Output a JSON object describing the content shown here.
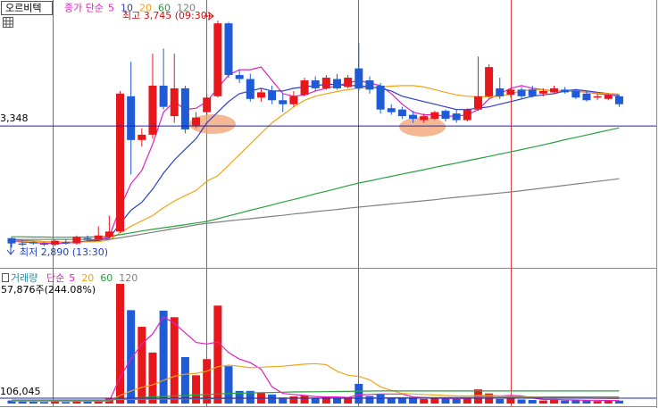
{
  "chart_data": [
    {
      "type": "candlestick",
      "stock_name": "오르비텍",
      "legend_prefix": "종가 단순",
      "high_label": "최고 3,745 (09:30)",
      "low_label": "최저 2,890 (13:30)",
      "reference_line": {
        "value": 3348,
        "label": "3,348"
      },
      "ylim": [
        2813,
        3823
      ],
      "up_color": "#e8171c",
      "down_color": "#1f5bd6",
      "open": [
        2925,
        2905,
        2910,
        2905,
        2900,
        2910,
        2905,
        2925,
        2920,
        2930,
        2950,
        3460,
        3295,
        3315,
        3500,
        3385,
        3490,
        3350,
        3400,
        3460,
        3735,
        3540,
        3525,
        3455,
        3480,
        3445,
        3430,
        3465,
        3520,
        3490,
        3525,
        3495,
        3565,
        3520,
        3500,
        3415,
        3410,
        3390,
        3370,
        3375,
        3405,
        3395,
        3370,
        3410,
        3460,
        3490,
        3465,
        3485,
        3485,
        3470,
        3475,
        3485,
        3480,
        3470,
        3455,
        3450,
        3460
      ],
      "high": [
        2930,
        2915,
        2915,
        2910,
        2920,
        2920,
        2935,
        2935,
        2970,
        3010,
        3480,
        3590,
        3340,
        3620,
        3640,
        3620,
        3500,
        3400,
        3470,
        3745,
        3740,
        3560,
        3545,
        3490,
        3500,
        3470,
        3480,
        3530,
        3535,
        3540,
        3545,
        3540,
        3660,
        3535,
        3510,
        3430,
        3420,
        3405,
        3395,
        3405,
        3410,
        3410,
        3415,
        3610,
        3580,
        3530,
        3490,
        3495,
        3500,
        3490,
        3500,
        3495,
        3485,
        3480,
        3470,
        3470,
        3465
      ],
      "low": [
        2890,
        2895,
        2900,
        2895,
        2895,
        2900,
        2900,
        2915,
        2915,
        2925,
        2945,
        3165,
        3270,
        3300,
        3410,
        3360,
        3320,
        3340,
        3390,
        3455,
        3530,
        3510,
        3440,
        3440,
        3430,
        3400,
        3420,
        3460,
        3480,
        3485,
        3485,
        3490,
        3480,
        3470,
        3395,
        3390,
        3375,
        3360,
        3360,
        3370,
        3365,
        3360,
        3365,
        3405,
        3455,
        3450,
        3455,
        3450,
        3455,
        3460,
        3470,
        3470,
        3450,
        3440,
        3445,
        3445,
        3420
      ],
      "close": [
        2905,
        2900,
        2905,
        2900,
        2915,
        2905,
        2930,
        2920,
        2935,
        2950,
        3470,
        3295,
        3315,
        3500,
        3420,
        3490,
        3335,
        3380,
        3455,
        3735,
        3540,
        3525,
        3450,
        3475,
        3445,
        3430,
        3460,
        3520,
        3490,
        3530,
        3490,
        3530,
        3490,
        3485,
        3410,
        3400,
        3385,
        3375,
        3385,
        3400,
        3375,
        3370,
        3410,
        3460,
        3570,
        3460,
        3485,
        3460,
        3460,
        3480,
        3490,
        3475,
        3455,
        3445,
        3460,
        3465,
        3430
      ],
      "series": [
        {
          "name": "5",
          "color": "#e020c0",
          "values": [
            2915,
            2910,
            2908,
            2906,
            2905,
            2906,
            2910,
            2915,
            2920,
            2930,
            3040,
            3130,
            3180,
            3280,
            3400,
            3440,
            3410,
            3415,
            3440,
            3490,
            3540,
            3560,
            3560,
            3570,
            3520,
            3470,
            3460,
            3465,
            3480,
            3490,
            3500,
            3510,
            3520,
            3510,
            3500,
            3470,
            3430,
            3400,
            3390,
            3390,
            3385,
            3385,
            3390,
            3410,
            3450,
            3470,
            3490,
            3500,
            3490,
            3485,
            3480,
            3480,
            3480,
            3475,
            3470,
            3465,
            3460
          ]
        },
        {
          "name": "10",
          "color": "#2a3fc8",
          "values": [
            2918,
            2916,
            2914,
            2912,
            2910,
            2910,
            2911,
            2913,
            2916,
            2925,
            2980,
            3030,
            3060,
            3110,
            3170,
            3220,
            3260,
            3300,
            3360,
            3400,
            3440,
            3470,
            3480,
            3490,
            3480,
            3480,
            3490,
            3495,
            3500,
            3505,
            3505,
            3500,
            3500,
            3495,
            3490,
            3480,
            3460,
            3450,
            3440,
            3430,
            3420,
            3410,
            3410,
            3415,
            3420,
            3430,
            3440,
            3450,
            3460,
            3465,
            3470,
            3480,
            3485,
            3480,
            3475,
            3470,
            3465
          ]
        },
        {
          "name": "20",
          "color": "#f0a418",
          "values": [
            2915,
            2914,
            2913,
            2912,
            2911,
            2910,
            2910,
            2911,
            2912,
            2918,
            2945,
            2970,
            2990,
            3010,
            3040,
            3065,
            3085,
            3105,
            3140,
            3160,
            3200,
            3240,
            3280,
            3320,
            3360,
            3390,
            3420,
            3445,
            3460,
            3470,
            3478,
            3485,
            3490,
            3495,
            3495,
            3498,
            3500,
            3500,
            3495,
            3485,
            3475,
            3465,
            3460,
            3458,
            3458,
            3460,
            3470,
            3480,
            3485,
            3485,
            3480,
            3480,
            3478,
            3475,
            3472,
            3470,
            3468
          ]
        },
        {
          "name": "60",
          "color": "#2aa040",
          "values": [
            2930,
            2930,
            2929,
            2929,
            2928,
            2928,
            2928,
            2929,
            2930,
            2932,
            2938,
            2945,
            2952,
            2958,
            2964,
            2970,
            2976,
            2982,
            2988,
            2998,
            3009,
            3019,
            3030,
            3040,
            3050,
            3061,
            3071,
            3081,
            3092,
            3102,
            3112,
            3123,
            3133,
            3141,
            3150,
            3158,
            3167,
            3175,
            3183,
            3192,
            3200,
            3208,
            3217,
            3225,
            3233,
            3242,
            3250,
            3259,
            3268,
            3277,
            3286,
            3296,
            3305,
            3314,
            3323,
            3332,
            3341
          ]
        },
        {
          "name": "120",
          "color": "#808080",
          "values": [
            2920,
            2920,
            2920,
            2920,
            2920,
            2920,
            2920,
            2920,
            2920,
            2920,
            2926,
            2933,
            2940,
            2947,
            2954,
            2961,
            2968,
            2975,
            2981,
            2985,
            2990,
            2994,
            2998,
            3003,
            3007,
            3011,
            3016,
            3020,
            3025,
            3029,
            3033,
            3038,
            3042,
            3046,
            3050,
            3054,
            3058,
            3062,
            3066,
            3070,
            3075,
            3079,
            3083,
            3087,
            3091,
            3095,
            3099,
            3104,
            3109,
            3114,
            3119,
            3124,
            3129,
            3134,
            3139,
            3144,
            3149
          ]
        }
      ]
    },
    {
      "type": "volume",
      "legend_title": "거래량",
      "legend_prefix": "단순",
      "current_label": "57,876주(244.08%)",
      "reference_line": {
        "value": 106045,
        "label": "106,045"
      },
      "ylim": [
        0,
        2600000
      ],
      "values": [
        60000,
        40000,
        35000,
        30000,
        45000,
        30000,
        55000,
        40000,
        70000,
        110000,
        2370000,
        1850000,
        1520000,
        1010000,
        1840000,
        1710000,
        920000,
        560000,
        880000,
        1940000,
        740000,
        250000,
        250000,
        210000,
        180000,
        120000,
        140000,
        160000,
        110000,
        130000,
        100000,
        120000,
        390000,
        150000,
        180000,
        120000,
        100000,
        110000,
        90000,
        120000,
        100000,
        90000,
        110000,
        280000,
        200000,
        90000,
        110000,
        80000,
        70000,
        60000,
        90000,
        60000,
        70000,
        60000,
        50000,
        55000,
        57876
      ],
      "series": [
        {
          "name": "5",
          "color": "#e020c0",
          "values": [
            50000,
            50000,
            50000,
            50000,
            50000,
            50000,
            50000,
            50000,
            50000,
            50000,
            520000,
            880000,
            1180000,
            1380000,
            1720000,
            1590000,
            1400000,
            1210000,
            1180000,
            1220000,
            1010000,
            880000,
            810000,
            680000,
            330000,
            200000,
            180000,
            160000,
            140000,
            130000,
            130000,
            120000,
            170000,
            180000,
            190000,
            190000,
            190000,
            130000,
            120000,
            110000,
            100000,
            100000,
            100000,
            140000,
            160000,
            150000,
            160000,
            150000,
            110000,
            80000,
            80000,
            75000,
            70000,
            65000,
            65000,
            60000,
            58000
          ]
        },
        {
          "name": "20",
          "color": "#f0a418",
          "values": [
            50000,
            50000,
            50000,
            50000,
            50000,
            50000,
            50000,
            50000,
            50000,
            50000,
            160000,
            250000,
            320000,
            370000,
            460000,
            540000,
            580000,
            600000,
            640000,
            730000,
            760000,
            740000,
            710000,
            720000,
            730000,
            740000,
            760000,
            780000,
            790000,
            770000,
            640000,
            560000,
            540000,
            470000,
            330000,
            260000,
            200000,
            190000,
            180000,
            170000,
            160000,
            150000,
            150000,
            160000,
            160000,
            150000,
            140000,
            135000,
            130000,
            125000,
            120000,
            115000,
            110000,
            108000,
            105000,
            100000,
            98000
          ]
        },
        {
          "name": "60",
          "color": "#2aa040",
          "values": [
            60000,
            60000,
            60000,
            60000,
            60000,
            60000,
            60000,
            60000,
            60000,
            60000,
            100000,
            110000,
            120000,
            130000,
            140000,
            150000,
            160000,
            170000,
            180000,
            190000,
            200000,
            205000,
            210000,
            215000,
            220000,
            225000,
            230000,
            232000,
            234000,
            236000,
            238000,
            240000,
            245000,
            248000,
            250000,
            250000,
            250000,
            250000,
            250000,
            250000,
            250000,
            250000,
            250000,
            250000,
            250000,
            250000,
            250000,
            250000,
            250000,
            250000,
            250000,
            250000,
            250000,
            250000,
            250000,
            250000,
            250000
          ]
        },
        {
          "name": "120",
          "color": "#808080",
          "values": [
            70000,
            70000,
            70000,
            70000,
            70000,
            70000,
            70000,
            70000,
            70000,
            70000,
            80000,
            82000,
            84000,
            86000,
            88000,
            90000,
            92000,
            94000,
            96000,
            98000,
            100000,
            101000,
            102000,
            103000,
            104000,
            105000,
            106000,
            107000,
            108000,
            109000,
            110000,
            111000,
            112000,
            113000,
            114000,
            115000,
            116000,
            117000,
            118000,
            119000,
            120000,
            121000,
            122000,
            123000,
            124000,
            125000,
            126000,
            127000,
            128000,
            129000,
            130000,
            130000,
            130000,
            130000,
            130000,
            130000,
            130000
          ]
        }
      ]
    }
  ]
}
